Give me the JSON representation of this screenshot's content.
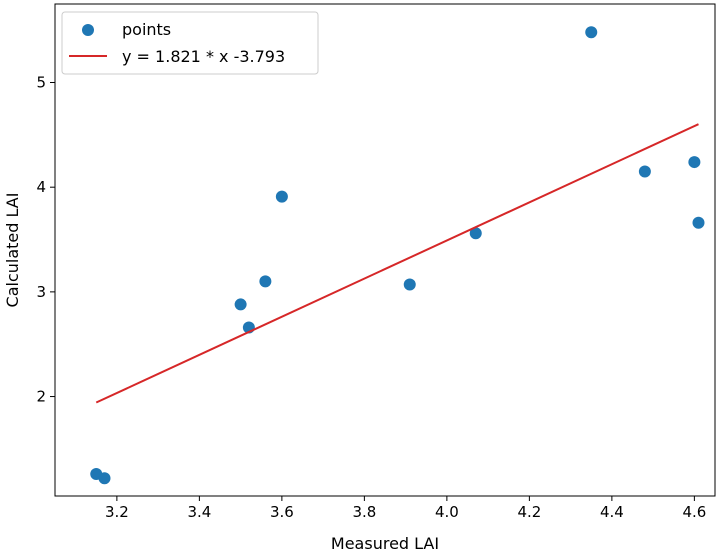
{
  "chart_data": {
    "type": "scatter",
    "xlabel": "Measured LAI",
    "ylabel": "Calculated LAI",
    "xlim": [
      3.05,
      4.65
    ],
    "ylim": [
      1.05,
      5.75
    ],
    "xticks": [
      3.2,
      3.4,
      3.6,
      3.8,
      4.0,
      4.2,
      4.4,
      4.6
    ],
    "xtick_labels": [
      "3.2",
      "3.4",
      "3.6",
      "3.8",
      "4.0",
      "4.2",
      "4.4",
      "4.6"
    ],
    "yticks": [
      2,
      3,
      4,
      5
    ],
    "ytick_labels": [
      "2",
      "3",
      "4",
      "5"
    ],
    "grid": false,
    "legend_position": "top-left",
    "series": [
      {
        "name": "points",
        "kind": "scatter",
        "color": "#1f77b4",
        "points": [
          {
            "x": 3.15,
            "y": 1.26
          },
          {
            "x": 3.17,
            "y": 1.22
          },
          {
            "x": 3.5,
            "y": 2.88
          },
          {
            "x": 3.52,
            "y": 2.66
          },
          {
            "x": 3.56,
            "y": 3.1
          },
          {
            "x": 3.6,
            "y": 3.91
          },
          {
            "x": 3.91,
            "y": 3.07
          },
          {
            "x": 4.07,
            "y": 3.56
          },
          {
            "x": 4.35,
            "y": 5.48
          },
          {
            "x": 4.48,
            "y": 4.15
          },
          {
            "x": 4.6,
            "y": 4.24
          },
          {
            "x": 4.61,
            "y": 3.66
          }
        ]
      },
      {
        "name": "y = 1.821 * x -3.793",
        "kind": "line",
        "color": "#d62728",
        "points": [
          {
            "x": 3.15,
            "y": 1.943
          },
          {
            "x": 4.61,
            "y": 4.602
          }
        ]
      }
    ]
  }
}
